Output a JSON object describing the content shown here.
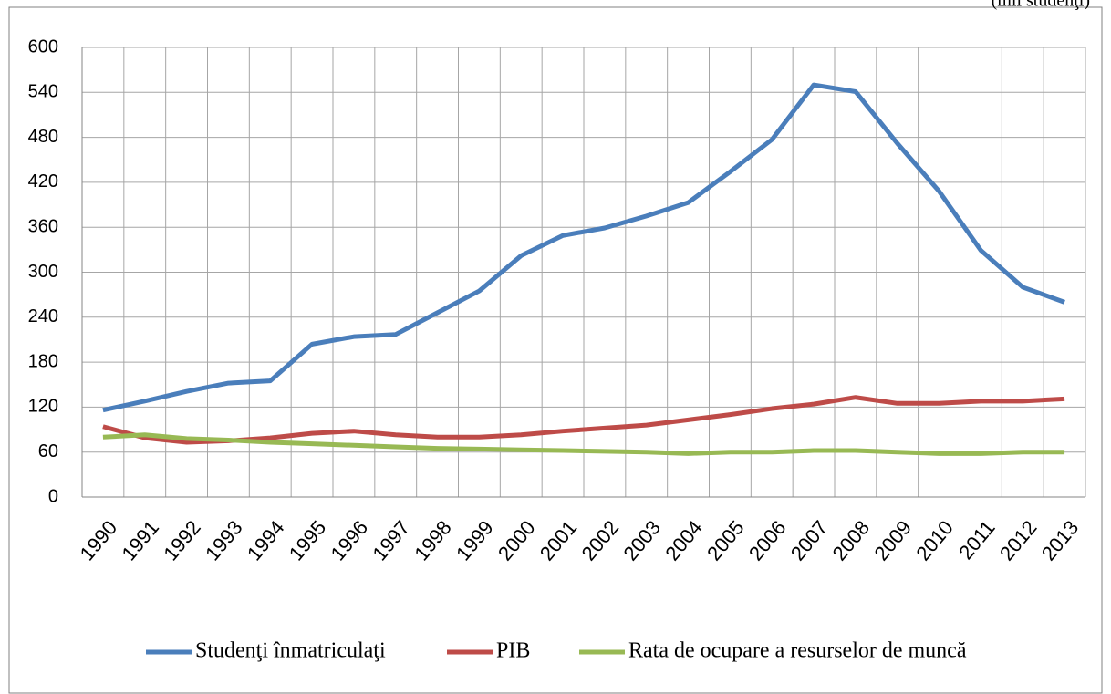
{
  "chart_data": {
    "type": "line",
    "unit_note": "(mii studenţi)",
    "categories": [
      "1990",
      "1991",
      "1992",
      "1993",
      "1994",
      "1995",
      "1996",
      "1997",
      "1998",
      "1999",
      "2000",
      "2001",
      "2002",
      "2003",
      "2004",
      "2005",
      "2006",
      "2007",
      "2008",
      "2009",
      "2010",
      "2011",
      "2012",
      "2013"
    ],
    "series": [
      {
        "name": "Studenţi înmatriculaţi",
        "color": "#4a7ebb",
        "values": [
          116,
          128,
          141,
          152,
          155,
          204,
          214,
          217,
          246,
          275,
          322,
          349,
          359,
          375,
          393,
          434,
          477,
          550,
          541,
          472,
          408,
          329,
          280,
          260
        ]
      },
      {
        "name": "PIB",
        "color": "#be4b48",
        "values": [
          94,
          79,
          73,
          75,
          79,
          85,
          88,
          83,
          80,
          80,
          83,
          88,
          92,
          96,
          103,
          110,
          118,
          124,
          133,
          125,
          125,
          128,
          128,
          131
        ]
      },
      {
        "name": "Rata de ocupare a resurselor de muncă",
        "color": "#98b954",
        "values": [
          80,
          83,
          78,
          76,
          73,
          71,
          69,
          67,
          65,
          64,
          63,
          62,
          61,
          60,
          58,
          60,
          60,
          62,
          62,
          60,
          58,
          58,
          60,
          60
        ]
      }
    ],
    "ylim": [
      0,
      600
    ],
    "yticks": [
      0,
      60,
      120,
      180,
      240,
      300,
      360,
      420,
      480,
      540,
      600
    ],
    "grid": true,
    "legend": "bottom"
  }
}
